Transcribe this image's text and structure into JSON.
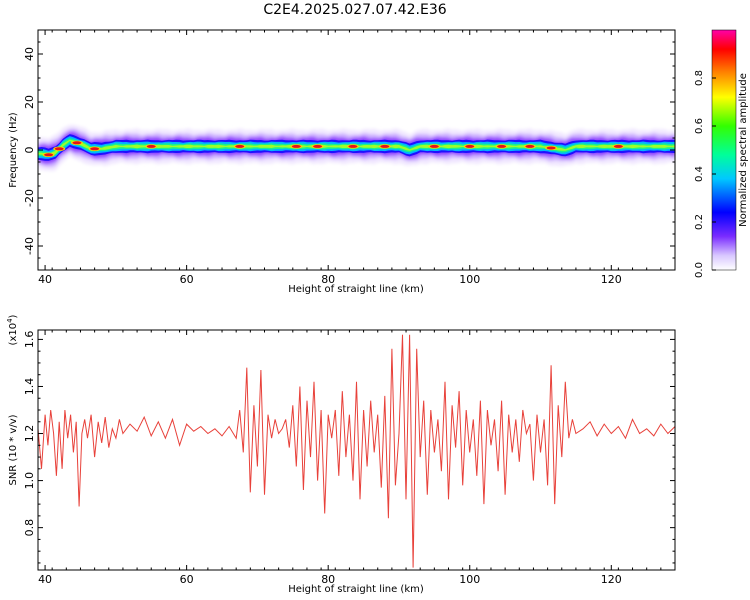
{
  "title": "C2E4.2025.027.07.42.E36",
  "chart_data": [
    {
      "type": "heatmap",
      "xlabel": "Height of straight line (km)",
      "ylabel": "Frequency (Hz)",
      "xlim": [
        39,
        129
      ],
      "ylim": [
        -50,
        50
      ],
      "xticks": [
        40,
        60,
        80,
        100,
        120
      ],
      "yticks": [
        -40,
        -20,
        0,
        20,
        40
      ],
      "colorbar": {
        "label": "Normalized spectral amplitude",
        "range": [
          0,
          1
        ],
        "ticks": [
          "0.0",
          "0.2",
          "0.4",
          "0.6",
          "0.8"
        ]
      },
      "ridge": {
        "x": [
          39.5,
          40.5,
          41.5,
          42.5,
          43.5,
          44.5,
          45.5,
          46.5,
          48,
          50,
          60,
          70,
          80,
          90,
          91.5,
          93,
          100,
          110,
          113.5,
          115,
          120,
          129
        ],
        "freq": [
          -1.5,
          -2.0,
          -1.0,
          2.0,
          4.0,
          3.0,
          2.0,
          0.5,
          0.5,
          1.5,
          1.5,
          1.5,
          1.5,
          1.5,
          0.0,
          1.5,
          1.5,
          1.5,
          0.0,
          1.5,
          1.5,
          1.5
        ]
      },
      "hotspots_x": [
        40.5,
        42,
        44.5,
        47,
        55,
        67.5,
        75.5,
        78.5,
        83.5,
        88,
        95,
        100,
        104.5,
        108.5,
        111.5,
        121
      ]
    },
    {
      "type": "line",
      "xlabel": "Height of straight line (km)",
      "ylabel": "SNR (10 * v/v)",
      "multiplier": "(x10",
      "multiplier_exp": "4",
      "multiplier_close": ")",
      "xlim": [
        39,
        129
      ],
      "ylim": [
        0.62,
        1.64
      ],
      "xticks": [
        40,
        60,
        80,
        100,
        120
      ],
      "yticks": [
        0.8,
        1.0,
        1.2,
        1.4,
        1.6
      ],
      "ytick_labels": [
        "0.8",
        "1.0",
        "1.2",
        "1.4",
        "1.6"
      ],
      "color": "#e8413a",
      "series": [
        {
          "x": [
            39.0,
            39.5,
            40.0,
            40.4,
            40.8,
            41.2,
            41.6,
            42.0,
            42.4,
            42.8,
            43.2,
            43.6,
            44.0,
            44.4,
            44.8,
            45.2,
            45.6,
            46.0,
            46.5,
            47.0,
            47.5,
            48.0,
            48.5,
            49.0,
            49.5,
            50.0,
            50.5,
            51.0,
            52.0,
            53.0,
            54.0,
            55.0,
            56.0,
            57.0,
            58.0,
            59.0,
            60.0,
            61.0,
            62.0,
            63.0,
            64.0,
            65.0,
            66.0,
            67.0,
            67.5,
            68.0,
            68.5,
            69.0,
            69.5,
            70.0,
            70.5,
            71.0,
            71.5,
            72.0,
            72.5,
            73.0,
            73.5,
            74.0,
            74.5,
            75.0,
            75.5,
            76.0,
            76.5,
            77.0,
            77.5,
            78.0,
            78.5,
            79.0,
            79.5,
            80.0,
            80.5,
            81.0,
            81.5,
            82.0,
            82.5,
            83.0,
            83.5,
            84.0,
            84.5,
            85.0,
            85.5,
            86.0,
            86.5,
            87.0,
            87.5,
            88.0,
            88.5,
            89.0,
            89.5,
            90.0,
            90.5,
            91.0,
            91.5,
            92.0,
            92.5,
            93.0,
            93.5,
            94.0,
            94.5,
            95.0,
            95.5,
            96.0,
            96.5,
            97.0,
            97.5,
            98.0,
            98.5,
            99.0,
            99.5,
            100.0,
            100.5,
            101.0,
            101.5,
            102.0,
            102.5,
            103.0,
            103.5,
            104.0,
            104.5,
            105.0,
            105.5,
            106.0,
            106.5,
            107.0,
            107.5,
            108.0,
            108.5,
            109.0,
            109.5,
            110.0,
            110.5,
            111.0,
            111.5,
            112.0,
            112.5,
            113.0,
            113.5,
            114.0,
            114.5,
            115.0,
            116.0,
            117.0,
            118.0,
            119.0,
            120.0,
            121.0,
            122.0,
            123.0,
            124.0,
            125.0,
            126.0,
            127.0,
            128.0,
            129.0
          ],
          "y": [
            1.22,
            1.05,
            1.28,
            1.15,
            1.3,
            1.2,
            1.02,
            1.25,
            1.05,
            1.3,
            1.18,
            1.28,
            1.12,
            1.25,
            0.89,
            1.2,
            1.26,
            1.18,
            1.28,
            1.1,
            1.25,
            1.16,
            1.27,
            1.14,
            1.22,
            1.18,
            1.26,
            1.2,
            1.24,
            1.21,
            1.27,
            1.19,
            1.25,
            1.18,
            1.26,
            1.15,
            1.24,
            1.21,
            1.23,
            1.2,
            1.22,
            1.19,
            1.23,
            1.18,
            1.3,
            1.12,
            1.48,
            0.95,
            1.32,
            1.06,
            1.47,
            0.94,
            1.28,
            1.18,
            1.26,
            1.2,
            1.22,
            1.26,
            1.14,
            1.32,
            1.06,
            1.4,
            0.96,
            1.34,
            1.1,
            1.42,
            1.0,
            1.3,
            0.86,
            1.28,
            1.18,
            1.3,
            1.02,
            1.38,
            1.1,
            1.28,
            1.0,
            1.42,
            0.92,
            1.3,
            1.06,
            1.34,
            1.12,
            1.28,
            0.97,
            1.36,
            0.84,
            1.56,
            0.98,
            1.2,
            1.62,
            0.92,
            1.62,
            0.63,
            1.56,
            1.1,
            1.34,
            0.94,
            1.3,
            1.12,
            1.26,
            1.04,
            1.42,
            0.92,
            1.32,
            1.14,
            1.38,
            0.98,
            1.3,
            1.12,
            1.26,
            1.02,
            1.34,
            0.9,
            1.3,
            1.15,
            1.26,
            1.04,
            1.34,
            0.94,
            1.28,
            1.12,
            1.26,
            1.08,
            1.3,
            1.2,
            1.24,
            1.0,
            1.28,
            1.12,
            1.26,
            0.98,
            1.49,
            0.9,
            1.32,
            1.1,
            1.42,
            1.18,
            1.26,
            1.2,
            1.22,
            1.25,
            1.19,
            1.24,
            1.2,
            1.23,
            1.18,
            1.26,
            1.2,
            1.22,
            1.19,
            1.24,
            1.2,
            1.23
          ]
        }
      ]
    }
  ]
}
